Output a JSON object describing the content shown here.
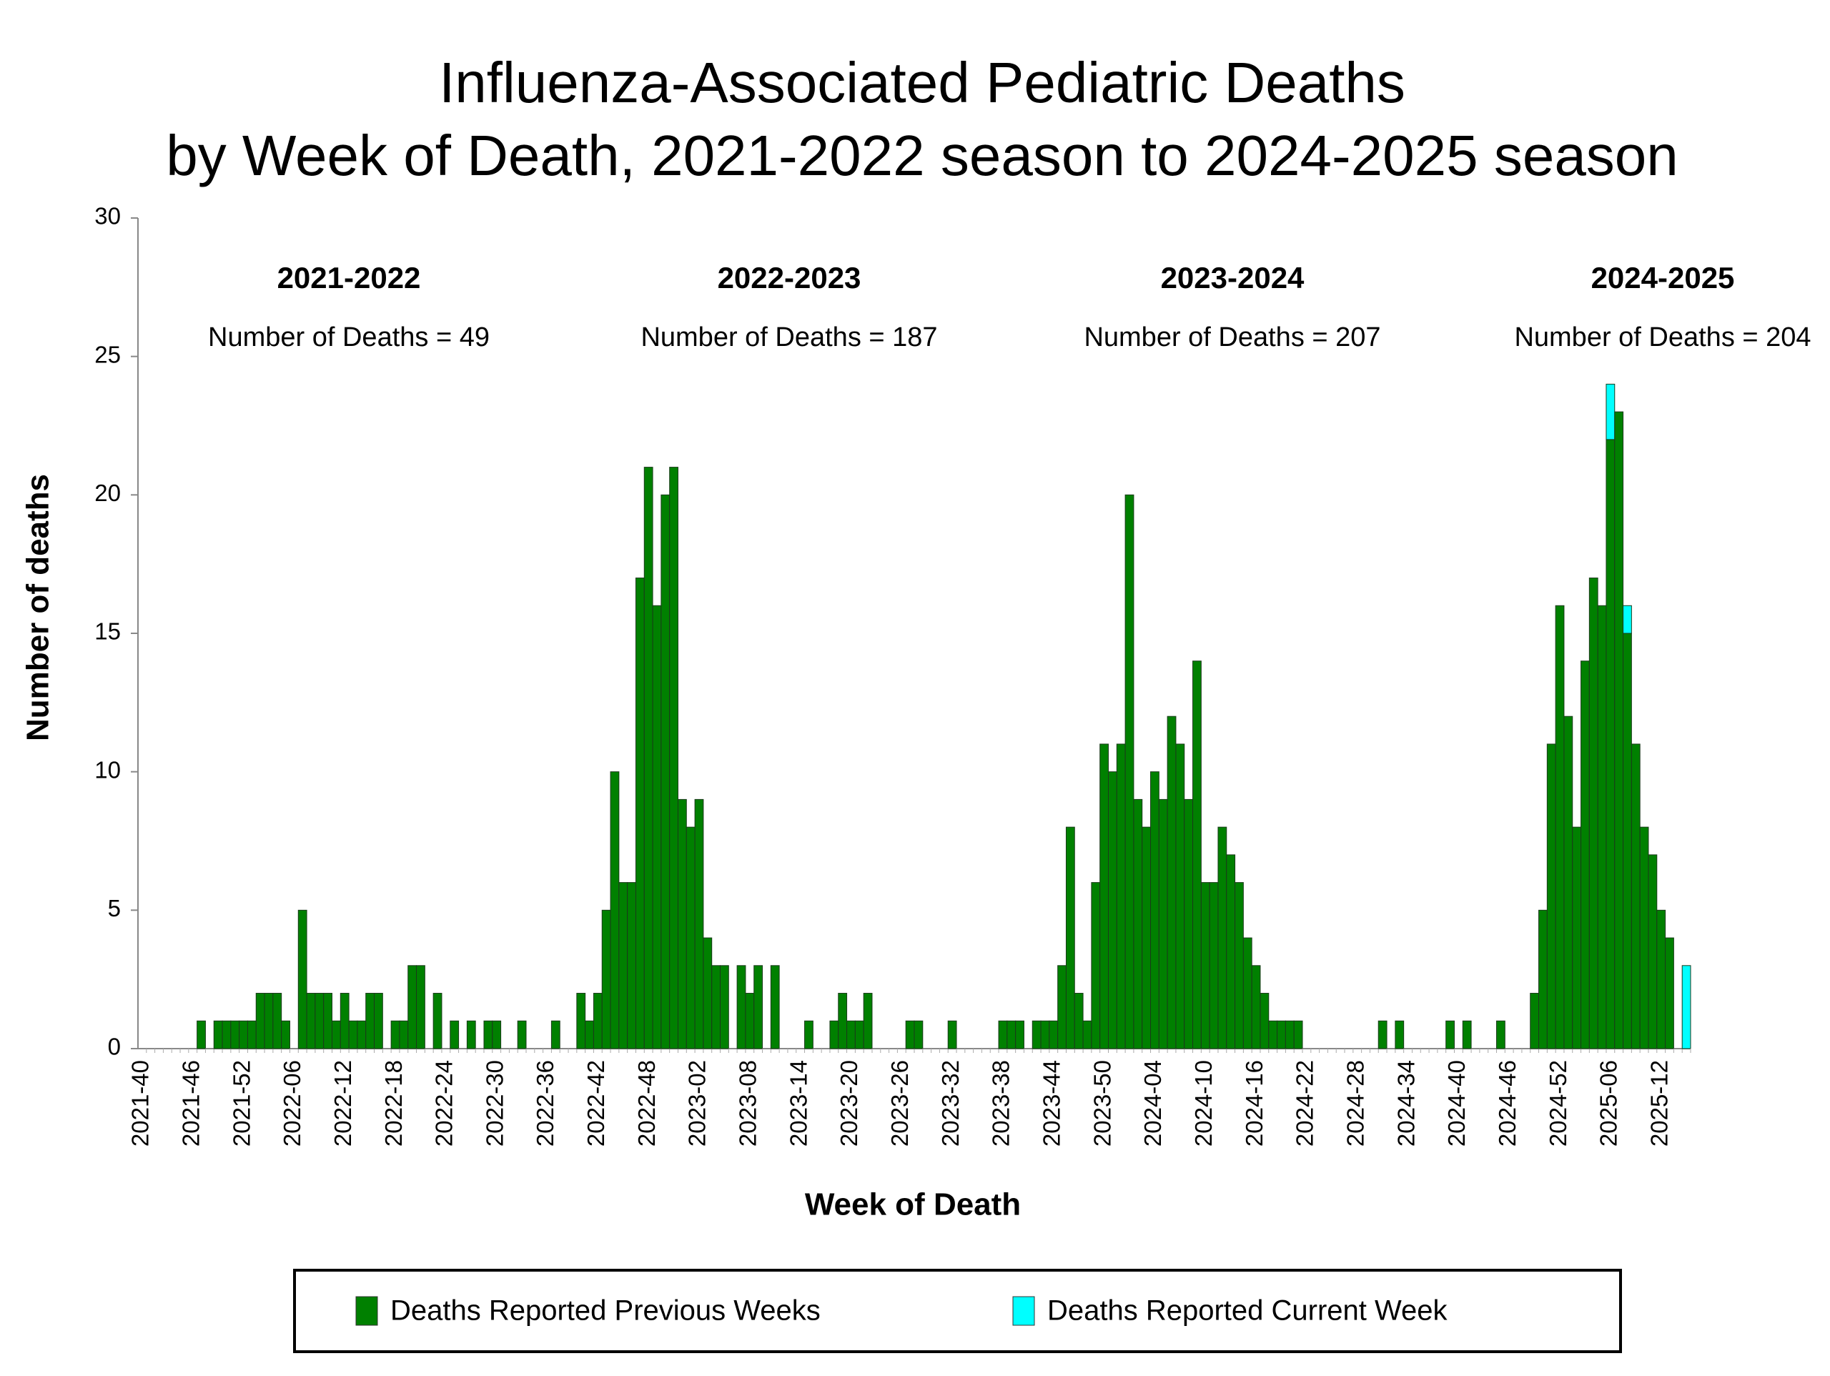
{
  "chart_data": {
    "type": "stacked-bar",
    "title": "Influenza-Associated Pediatric Deaths",
    "subtitle": "by Week of Death, 2021-2022 season to 2024-2025 season",
    "x_label": "Week of Death",
    "y_label": "Number of deaths",
    "ylim": [
      0,
      30
    ],
    "yticks": [
      0,
      5,
      10,
      15,
      20,
      25,
      30
    ],
    "grid": false,
    "legend": "bottom",
    "annotations": [
      {
        "season": "2021-2022",
        "text": "Number of Deaths = 49"
      },
      {
        "season": "2022-2023",
        "text": "Number of Deaths = 187"
      },
      {
        "season": "2023-2024",
        "text": "Number of Deaths = 207"
      },
      {
        "season": "2024-2025",
        "text": "Number of Deaths = 204"
      }
    ],
    "categories": [
      "2021-40",
      null,
      null,
      null,
      null,
      null,
      "2021-46",
      null,
      null,
      null,
      null,
      null,
      "2021-52",
      null,
      null,
      null,
      null,
      null,
      "2022-06",
      null,
      null,
      null,
      null,
      null,
      "2022-12",
      null,
      null,
      null,
      null,
      null,
      "2022-18",
      null,
      null,
      null,
      null,
      null,
      "2022-24",
      null,
      null,
      null,
      null,
      null,
      "2022-30",
      null,
      null,
      null,
      null,
      null,
      "2022-36",
      null,
      null,
      null,
      null,
      null,
      "2022-42",
      null,
      null,
      null,
      null,
      null,
      "2022-48",
      null,
      null,
      null,
      null,
      null,
      "2023-02",
      null,
      null,
      null,
      null,
      null,
      "2023-08",
      null,
      null,
      null,
      null,
      null,
      "2023-14",
      null,
      null,
      null,
      null,
      null,
      "2023-20",
      null,
      null,
      null,
      null,
      null,
      "2023-26",
      null,
      null,
      null,
      null,
      null,
      "2023-32",
      null,
      null,
      null,
      null,
      null,
      "2023-38",
      null,
      null,
      null,
      null,
      null,
      "2023-44",
      null,
      null,
      null,
      null,
      null,
      "2023-50",
      null,
      null,
      null,
      null,
      null,
      "2024-04",
      null,
      null,
      null,
      null,
      null,
      "2024-10",
      null,
      null,
      null,
      null,
      null,
      "2024-16",
      null,
      null,
      null,
      null,
      null,
      "2024-22",
      null,
      null,
      null,
      null,
      null,
      "2024-28",
      null,
      null,
      null,
      null,
      null,
      "2024-34",
      null,
      null,
      null,
      null,
      null,
      "2024-40",
      null,
      null,
      null,
      null,
      null,
      "2024-46",
      null,
      null,
      null,
      null,
      null,
      "2024-52",
      null,
      null,
      null,
      null,
      null,
      "2025-06",
      null,
      null,
      null,
      null,
      null,
      "2025-12",
      null,
      null,
      null
    ],
    "series": [
      {
        "name": "Deaths Reported Previous Weeks",
        "color": "#008000",
        "values": [
          0,
          0,
          0,
          0,
          0,
          0,
          0,
          1,
          0,
          1,
          1,
          1,
          1,
          1,
          2,
          2,
          2,
          1,
          0,
          5,
          2,
          2,
          2,
          1,
          2,
          1,
          1,
          2,
          2,
          0,
          1,
          1,
          3,
          3,
          0,
          2,
          0,
          1,
          0,
          1,
          0,
          1,
          1,
          0,
          0,
          1,
          0,
          0,
          0,
          1,
          0,
          0,
          2,
          1,
          2,
          5,
          10,
          6,
          6,
          17,
          21,
          16,
          20,
          21,
          9,
          8,
          9,
          4,
          3,
          3,
          0,
          3,
          2,
          3,
          0,
          3,
          0,
          0,
          0,
          1,
          0,
          0,
          1,
          2,
          1,
          1,
          2,
          0,
          0,
          0,
          0,
          1,
          1,
          0,
          0,
          0,
          1,
          0,
          0,
          0,
          0,
          0,
          1,
          1,
          1,
          0,
          1,
          1,
          1,
          3,
          8,
          2,
          1,
          6,
          11,
          10,
          11,
          20,
          9,
          8,
          10,
          9,
          12,
          11,
          9,
          14,
          6,
          6,
          8,
          7,
          6,
          4,
          3,
          2,
          1,
          1,
          1,
          1,
          0,
          0,
          0,
          0,
          0,
          0,
          0,
          0,
          0,
          1,
          0,
          1,
          0,
          0,
          0,
          0,
          0,
          1,
          0,
          1,
          0,
          0,
          0,
          1,
          0,
          0,
          0,
          2,
          5,
          11,
          16,
          12,
          8,
          14,
          17,
          16,
          22,
          23,
          15,
          11,
          8,
          7,
          5,
          4,
          0,
          0
        ]
      },
      {
        "name": "Deaths Reported Current Week",
        "color": "#00ffff",
        "values": [
          0,
          0,
          0,
          0,
          0,
          0,
          0,
          0,
          0,
          0,
          0,
          0,
          0,
          0,
          0,
          0,
          0,
          0,
          0,
          0,
          0,
          0,
          0,
          0,
          0,
          0,
          0,
          0,
          0,
          0,
          0,
          0,
          0,
          0,
          0,
          0,
          0,
          0,
          0,
          0,
          0,
          0,
          0,
          0,
          0,
          0,
          0,
          0,
          0,
          0,
          0,
          0,
          0,
          0,
          0,
          0,
          0,
          0,
          0,
          0,
          0,
          0,
          0,
          0,
          0,
          0,
          0,
          0,
          0,
          0,
          0,
          0,
          0,
          0,
          0,
          0,
          0,
          0,
          0,
          0,
          0,
          0,
          0,
          0,
          0,
          0,
          0,
          0,
          0,
          0,
          0,
          0,
          0,
          0,
          0,
          0,
          0,
          0,
          0,
          0,
          0,
          0,
          0,
          0,
          0,
          0,
          0,
          0,
          0,
          0,
          0,
          0,
          0,
          0,
          0,
          0,
          0,
          0,
          0,
          0,
          0,
          0,
          0,
          0,
          0,
          0,
          0,
          0,
          0,
          0,
          0,
          0,
          0,
          0,
          0,
          0,
          0,
          0,
          0,
          0,
          0,
          0,
          0,
          0,
          0,
          0,
          0,
          0,
          0,
          0,
          0,
          0,
          0,
          0,
          0,
          0,
          0,
          0,
          0,
          0,
          0,
          0,
          0,
          0,
          0,
          0,
          0,
          0,
          0,
          0,
          0,
          0,
          0,
          0,
          2,
          0,
          1,
          0,
          0,
          0,
          0,
          0,
          0,
          3
        ]
      }
    ]
  }
}
